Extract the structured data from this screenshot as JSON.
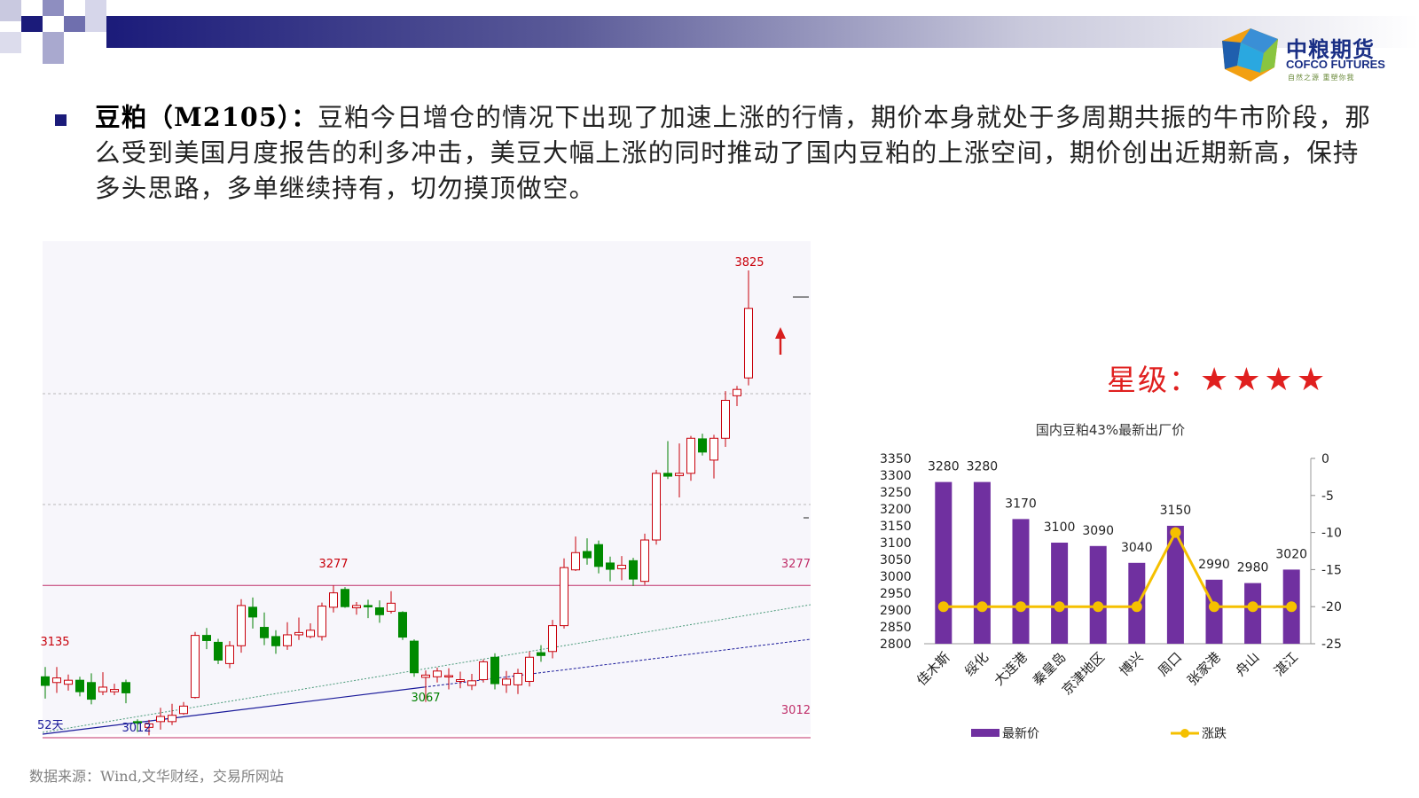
{
  "header": {
    "logo": {
      "cn": "中粮期货",
      "en": "COFCO FUTURES",
      "tagline": "自然之源 重塑你我"
    },
    "accent": "#1b1b7a"
  },
  "commentary": {
    "lead": "豆粕（M2105）：",
    "body": "豆粕今日增仓的情况下出现了加速上涨的行情，期价本身就处于多周期共振的牛市阶段，那么受到美国月度报告的利多冲击，美豆大幅上涨的同时推动了国内豆粕的上涨空间，期价创出近期新高，保持多头思路，多单继续持有，切勿摸顶做空。"
  },
  "rating": {
    "label": "星级：",
    "stars": "★★★★",
    "count": 4
  },
  "source": "数据来源：Wind,文华财经，交易所网站",
  "chart_data": [
    {
      "type": "candlestick",
      "title": "",
      "annotations": [
        {
          "text": "3825",
          "value": 3825
        },
        {
          "text": "3277",
          "value": 3277
        },
        {
          "text": "3135",
          "value": 3135
        },
        {
          "text": "3067",
          "value": 3067
        },
        {
          "text": "3012",
          "value": 3012
        }
      ],
      "right_labels": [
        {
          "text": "3277",
          "value": 3277
        },
        {
          "text": "3012",
          "value": 3012
        }
      ],
      "corner_label": "52天",
      "horizontal_lines": [
        3277,
        3012
      ],
      "candles": [
        {
          "o": 3118,
          "c": 3103,
          "h": 3135,
          "l": 3080
        },
        {
          "o": 3108,
          "c": 3116,
          "h": 3135,
          "l": 3090
        },
        {
          "o": 3105,
          "c": 3112,
          "h": 3122,
          "l": 3094
        },
        {
          "o": 3112,
          "c": 3092,
          "h": 3118,
          "l": 3084
        },
        {
          "o": 3108,
          "c": 3079,
          "h": 3124,
          "l": 3070
        },
        {
          "o": 3092,
          "c": 3100,
          "h": 3126,
          "l": 3086
        },
        {
          "o": 3092,
          "c": 3096,
          "h": 3106,
          "l": 3086
        },
        {
          "o": 3108,
          "c": 3090,
          "h": 3113,
          "l": 3072
        },
        {
          "o": 3040,
          "c": 3038,
          "h": 3044,
          "l": 3022
        },
        {
          "o": 3030,
          "c": 3036,
          "h": 3043,
          "l": 3016
        },
        {
          "o": 3040,
          "c": 3049,
          "h": 3064,
          "l": 3026
        },
        {
          "o": 3040,
          "c": 3051,
          "h": 3071,
          "l": 3034
        },
        {
          "o": 3054,
          "c": 3067,
          "h": 3074,
          "l": 3052
        },
        {
          "o": 3082,
          "c": 3190,
          "h": 3196,
          "l": 3080
        },
        {
          "o": 3190,
          "c": 3181,
          "h": 3203,
          "l": 3166
        },
        {
          "o": 3178,
          "c": 3147,
          "h": 3184,
          "l": 3140
        },
        {
          "o": 3141,
          "c": 3172,
          "h": 3180,
          "l": 3133
        },
        {
          "o": 3172,
          "c": 3242,
          "h": 3253,
          "l": 3160
        },
        {
          "o": 3239,
          "c": 3222,
          "h": 3256,
          "l": 3202
        },
        {
          "o": 3204,
          "c": 3186,
          "h": 3230,
          "l": 3173
        },
        {
          "o": 3188,
          "c": 3172,
          "h": 3199,
          "l": 3158
        },
        {
          "o": 3172,
          "c": 3191,
          "h": 3213,
          "l": 3165
        },
        {
          "o": 3191,
          "c": 3195,
          "h": 3221,
          "l": 3182
        },
        {
          "o": 3188,
          "c": 3199,
          "h": 3211,
          "l": 3185
        },
        {
          "o": 3188,
          "c": 3241,
          "h": 3247,
          "l": 3181
        },
        {
          "o": 3239,
          "c": 3264,
          "h": 3277,
          "l": 3230
        },
        {
          "o": 3270,
          "c": 3240,
          "h": 3274,
          "l": 3238
        },
        {
          "o": 3238,
          "c": 3242,
          "h": 3248,
          "l": 3226
        },
        {
          "o": 3242,
          "c": 3240,
          "h": 3252,
          "l": 3220
        },
        {
          "o": 3238,
          "c": 3226,
          "h": 3251,
          "l": 3212
        },
        {
          "o": 3232,
          "c": 3246,
          "h": 3267,
          "l": 3228
        },
        {
          "o": 3230,
          "c": 3187,
          "h": 3232,
          "l": 3182
        },
        {
          "o": 3180,
          "c": 3125,
          "h": 3183,
          "l": 3118
        },
        {
          "o": 3117,
          "c": 3121,
          "h": 3129,
          "l": 3074
        },
        {
          "o": 3118,
          "c": 3128,
          "h": 3134,
          "l": 3108
        },
        {
          "o": 3118,
          "c": 3120,
          "h": 3133,
          "l": 3096
        },
        {
          "o": 3110,
          "c": 3113,
          "h": 3127,
          "l": 3098
        },
        {
          "o": 3103,
          "c": 3111,
          "h": 3123,
          "l": 3095
        },
        {
          "o": 3113,
          "c": 3144,
          "h": 3148,
          "l": 3108
        },
        {
          "o": 3152,
          "c": 3106,
          "h": 3159,
          "l": 3096
        },
        {
          "o": 3104,
          "c": 3114,
          "h": 3128,
          "l": 3090
        },
        {
          "o": 3104,
          "c": 3124,
          "h": 3132,
          "l": 3088
        },
        {
          "o": 3110,
          "c": 3152,
          "h": 3162,
          "l": 3101
        },
        {
          "o": 3160,
          "c": 3155,
          "h": 3173,
          "l": 3144
        },
        {
          "o": 3162,
          "c": 3207,
          "h": 3217,
          "l": 3150
        },
        {
          "o": 3207,
          "c": 3308,
          "h": 3324,
          "l": 3202
        },
        {
          "o": 3304,
          "c": 3334,
          "h": 3362,
          "l": 3302
        },
        {
          "o": 3336,
          "c": 3325,
          "h": 3359,
          "l": 3313
        },
        {
          "o": 3348,
          "c": 3310,
          "h": 3355,
          "l": 3298
        },
        {
          "o": 3316,
          "c": 3305,
          "h": 3327,
          "l": 3284
        },
        {
          "o": 3306,
          "c": 3312,
          "h": 3328,
          "l": 3286
        },
        {
          "o": 3320,
          "c": 3288,
          "h": 3325,
          "l": 3276
        },
        {
          "o": 3284,
          "c": 3356,
          "h": 3367,
          "l": 3278
        },
        {
          "o": 3356,
          "c": 3472,
          "h": 3478,
          "l": 3348
        },
        {
          "o": 3472,
          "c": 3467,
          "h": 3528,
          "l": 3462
        },
        {
          "o": 3468,
          "c": 3472,
          "h": 3524,
          "l": 3430
        },
        {
          "o": 3472,
          "c": 3533,
          "h": 3537,
          "l": 3459
        },
        {
          "o": 3532,
          "c": 3509,
          "h": 3541,
          "l": 3503
        },
        {
          "o": 3495,
          "c": 3533,
          "h": 3539,
          "l": 3463
        },
        {
          "o": 3533,
          "c": 3599,
          "h": 3615,
          "l": 3518
        },
        {
          "o": 3607,
          "c": 3618,
          "h": 3624,
          "l": 3589
        },
        {
          "o": 3638,
          "c": 3759,
          "h": 3825,
          "l": 3625
        }
      ]
    },
    {
      "type": "bar",
      "title": "国内豆粕43%最新出厂价",
      "categories": [
        "佳木斯",
        "绥化",
        "大连港",
        "秦皇岛",
        "京津地区",
        "博兴",
        "周口",
        "张家港",
        "舟山",
        "湛江"
      ],
      "series": [
        {
          "name": "最新价",
          "type": "bar",
          "axis": "left",
          "color": "#7030a0",
          "values": [
            3280,
            3280,
            3170,
            3100,
            3090,
            3040,
            3150,
            2990,
            2980,
            3020
          ]
        },
        {
          "name": "涨跌",
          "type": "line",
          "axis": "right",
          "color": "#f5c000",
          "values": [
            -20,
            -20,
            -20,
            -20,
            -20,
            -20,
            -10,
            -20,
            -20,
            -20
          ]
        }
      ],
      "ylim": [
        2800,
        3350
      ],
      "yticks": [
        2800,
        2850,
        2900,
        2950,
        3000,
        3050,
        3100,
        3150,
        3200,
        3250,
        3300,
        3350
      ],
      "y2lim": [
        -25,
        0
      ],
      "y2ticks": [
        0,
        -5,
        -10,
        -15,
        -20,
        -25
      ],
      "legend": "bottom"
    }
  ]
}
